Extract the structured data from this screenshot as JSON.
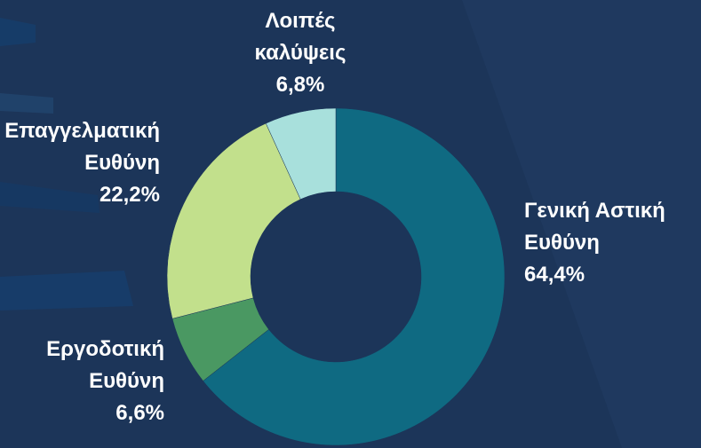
{
  "chart_data": {
    "type": "donut",
    "categories": [
      "Γενική Αστική Ευθύνη",
      "Εργοδοτική Ευθύνη",
      "Επαγγελματική Ευθύνη",
      "Λοιπές καλύψεις"
    ],
    "values": [
      64.4,
      6.6,
      22.2,
      6.8
    ],
    "value_labels": [
      "64,4%",
      "6,6%",
      "22,2%",
      "6,8%"
    ],
    "colors": [
      "#0f6a82",
      "#4a9862",
      "#c2e08c",
      "#a8e0dc"
    ]
  }
}
